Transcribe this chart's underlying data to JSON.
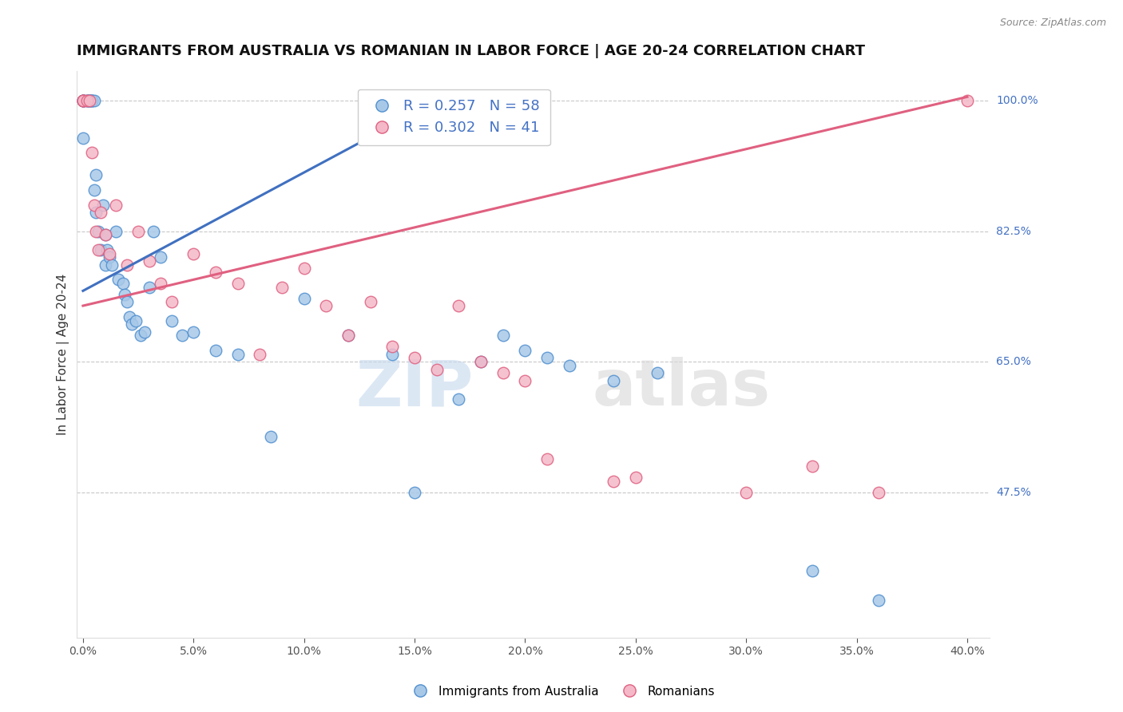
{
  "title": "IMMIGRANTS FROM AUSTRALIA VS ROMANIAN IN LABOR FORCE | AGE 20-24 CORRELATION CHART",
  "source": "Source: ZipAtlas.com",
  "xlabel_ticks": [
    0.0,
    5.0,
    10.0,
    15.0,
    20.0,
    25.0,
    30.0,
    35.0,
    40.0
  ],
  "ylabel_ticks": [
    47.5,
    65.0,
    82.5,
    100.0
  ],
  "xlim": [
    -0.3,
    41.0
  ],
  "ylim": [
    28.0,
    104.0
  ],
  "blue_label": "Immigrants from Australia",
  "pink_label": "Romanians",
  "blue_R": 0.257,
  "blue_N": 58,
  "pink_R": 0.302,
  "pink_N": 41,
  "blue_color": "#a8c8e8",
  "pink_color": "#f4b8c8",
  "blue_edge_color": "#5090d0",
  "pink_edge_color": "#e06080",
  "blue_line_color": "#4070c0",
  "pink_line_color": "#e06080",
  "blue_scatter_x": [
    0.0,
    0.0,
    0.0,
    0.0,
    0.0,
    0.2,
    0.2,
    0.25,
    0.3,
    0.3,
    0.35,
    0.4,
    0.4,
    0.5,
    0.5,
    0.6,
    0.6,
    0.7,
    0.8,
    0.9,
    1.0,
    1.0,
    1.1,
    1.2,
    1.3,
    1.5,
    1.6,
    1.8,
    1.9,
    2.0,
    2.1,
    2.2,
    2.4,
    2.6,
    2.8,
    3.0,
    3.2,
    3.5,
    4.0,
    4.5,
    5.0,
    6.0,
    7.0,
    8.5,
    10.0,
    12.0,
    14.0,
    15.0,
    17.0,
    18.0,
    19.0,
    20.0,
    21.0,
    22.0,
    24.0,
    26.0,
    33.0,
    36.0
  ],
  "blue_scatter_y": [
    100.0,
    100.0,
    100.0,
    100.0,
    95.0,
    100.0,
    100.0,
    100.0,
    100.0,
    100.0,
    100.0,
    100.0,
    100.0,
    100.0,
    88.0,
    90.0,
    85.0,
    82.5,
    80.0,
    86.0,
    78.0,
    82.0,
    80.0,
    79.0,
    78.0,
    82.5,
    76.0,
    75.5,
    74.0,
    73.0,
    71.0,
    70.0,
    70.5,
    68.5,
    69.0,
    75.0,
    82.5,
    79.0,
    70.5,
    68.5,
    69.0,
    66.5,
    66.0,
    55.0,
    73.5,
    68.5,
    66.0,
    47.5,
    60.0,
    65.0,
    68.5,
    66.5,
    65.5,
    64.5,
    62.5,
    63.5,
    37.0,
    33.0
  ],
  "pink_scatter_x": [
    0.0,
    0.0,
    0.0,
    0.2,
    0.3,
    0.4,
    0.5,
    0.6,
    0.7,
    0.8,
    1.0,
    1.2,
    1.5,
    2.0,
    2.5,
    3.0,
    3.5,
    4.0,
    5.0,
    6.0,
    7.0,
    8.0,
    9.0,
    10.0,
    11.0,
    12.0,
    13.0,
    14.0,
    15.0,
    16.0,
    17.0,
    18.0,
    19.0,
    20.0,
    21.0,
    24.0,
    25.0,
    30.0,
    33.0,
    36.0,
    40.0
  ],
  "pink_scatter_y": [
    100.0,
    100.0,
    100.0,
    100.0,
    100.0,
    93.0,
    86.0,
    82.5,
    80.0,
    85.0,
    82.0,
    79.5,
    86.0,
    78.0,
    82.5,
    78.5,
    75.5,
    73.0,
    79.5,
    77.0,
    75.5,
    66.0,
    75.0,
    77.5,
    72.5,
    68.5,
    73.0,
    67.0,
    65.5,
    64.0,
    72.5,
    65.0,
    63.5,
    62.5,
    52.0,
    49.0,
    49.5,
    47.5,
    51.0,
    47.5,
    100.0
  ],
  "blue_trend_x": [
    0.0,
    14.5
  ],
  "blue_trend_y": [
    74.5,
    97.5
  ],
  "pink_trend_x": [
    0.0,
    40.0
  ],
  "pink_trend_y": [
    72.5,
    100.5
  ],
  "watermark_zip": "ZIP",
  "watermark_atlas": "atlas",
  "background_color": "#ffffff",
  "grid_color": "#c8c8c8",
  "title_fontsize": 13,
  "axis_label_fontsize": 11,
  "tick_fontsize": 10,
  "legend_fontsize": 13,
  "right_tick_color": "#4472c4",
  "source_color": "#888888"
}
